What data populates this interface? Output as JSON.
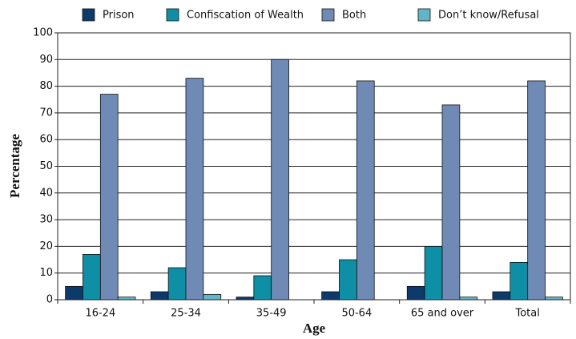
{
  "chart_data": {
    "type": "bar",
    "categories": [
      "16-24",
      "25-34",
      "35-49",
      "50-64",
      "65 and over",
      "Total"
    ],
    "series": [
      {
        "name": "Prison",
        "color": "#0d3a6b",
        "values": [
          5,
          3,
          1,
          3,
          5,
          3
        ]
      },
      {
        "name": "Confiscation of Wealth",
        "color": "#0e8fa5",
        "values": [
          17,
          12,
          9,
          15,
          20,
          14
        ]
      },
      {
        "name": "Both",
        "color": "#6f8ab5",
        "values": [
          77,
          83,
          90,
          82,
          73,
          82
        ]
      },
      {
        "name": "Don’t know/Refusal",
        "color": "#62b5c9",
        "values": [
          1,
          2,
          0,
          0,
          1,
          1
        ]
      }
    ],
    "xlabel": "Age",
    "ylabel": "Percentage",
    "ylim": [
      0,
      100
    ],
    "yticks": [
      0,
      10,
      20,
      30,
      40,
      50,
      60,
      70,
      80,
      90,
      100
    ],
    "grid": true,
    "legend": "top"
  }
}
